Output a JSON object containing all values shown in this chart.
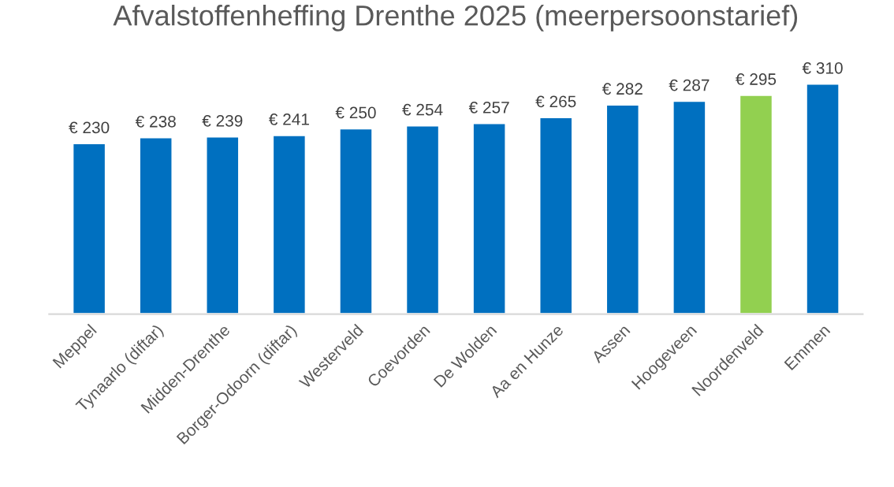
{
  "chart_data": {
    "type": "bar",
    "title": "Afvalstoffenheffing Drenthe 2025 (meerpersoonstarief)",
    "categories": [
      "Meppel",
      "Tynaarlo (diftar)",
      "Midden-Drenthe",
      "Borger-Odoorn (diftar)",
      "Westerveld",
      "Coevorden",
      "De Wolden",
      "Aa en Hunze",
      "Assen",
      "Hoogeveen",
      "Noordenveld",
      "Emmen"
    ],
    "values": [
      230,
      238,
      239,
      241,
      250,
      254,
      257,
      265,
      282,
      287,
      295,
      310
    ],
    "value_labels": [
      "€ 230",
      "€ 238",
      "€ 239",
      "€ 241",
      "€ 250",
      "€ 254",
      "€ 257",
      "€ 265",
      "€ 282",
      "€ 287",
      "€ 295",
      "€ 310"
    ],
    "colors": [
      "#0070c0",
      "#0070c0",
      "#0070c0",
      "#0070c0",
      "#0070c0",
      "#0070c0",
      "#0070c0",
      "#0070c0",
      "#0070c0",
      "#0070c0",
      "#92d050",
      "#0070c0"
    ],
    "tick_labels": "x",
    "grid": false,
    "legend": false
  }
}
